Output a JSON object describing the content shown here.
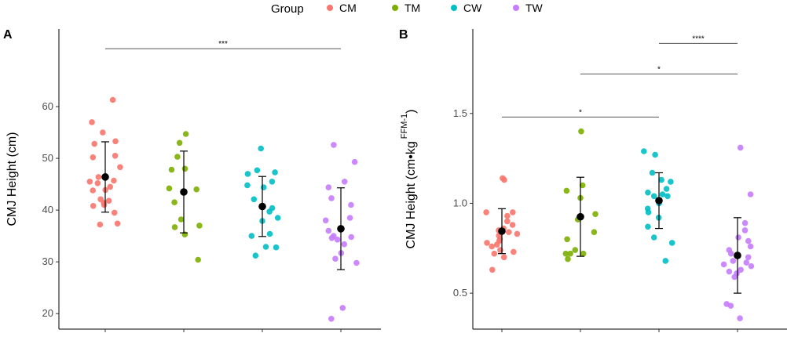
{
  "legend": {
    "title": "Group",
    "items": [
      {
        "label": "CM",
        "color": "#F8766D"
      },
      {
        "label": "TM",
        "color": "#7CAE00"
      },
      {
        "label": "CW",
        "color": "#00BFC4"
      },
      {
        "label": "TW",
        "color": "#C77CFF"
      }
    ]
  },
  "chart_data": [
    {
      "type": "scatter",
      "panel": "A",
      "ylabel": "CMJ Height (cm)",
      "ylim": [
        17,
        75
      ],
      "yticks": [
        20,
        30,
        40,
        50,
        60
      ],
      "groups": [
        "CM",
        "TM",
        "CW",
        "TW"
      ],
      "points": [
        [
          61.3,
          57.0,
          55.0,
          53.3,
          52.8,
          50.5,
          50.2,
          48.3,
          46.4,
          45.7,
          45.5,
          45.2,
          44.5,
          43.9,
          43.8,
          42.1,
          41.8,
          41.4,
          41.0,
          40.8,
          39.5,
          37.4,
          37.2
        ],
        [
          54.7,
          53.0,
          50.3,
          48.0,
          47.8,
          44.2,
          44.0,
          41.5,
          38.2,
          37.0,
          36.7,
          35.3,
          30.4
        ],
        [
          51.9,
          47.7,
          47.3,
          47.0,
          45.5,
          44.8,
          44.4,
          42.1,
          40.7,
          40.4,
          39.7,
          38.5,
          37.9,
          35.4,
          35.0,
          32.9,
          32.8,
          31.2
        ],
        [
          52.6,
          49.3,
          45.5,
          44.4,
          42.3,
          41.0,
          38.5,
          38.0,
          36.0,
          35.0,
          34.8,
          34.6,
          34.3,
          33.4,
          31.7,
          30.6,
          29.8,
          21.1,
          19.0
        ]
      ],
      "means": [
        46.4,
        43.5,
        40.7,
        36.4
      ],
      "sd": [
        6.8,
        7.9,
        5.8,
        7.9
      ],
      "significance": [
        {
          "from": "CM",
          "to": "TW",
          "label": "***",
          "y": 71.2
        }
      ]
    },
    {
      "type": "scatter",
      "panel": "B",
      "ylabel": "CMJ Height (cm•kg",
      "ylabel_sup": "FFM-1",
      "ylabel_close": ")",
      "ylim": [
        0.3,
        1.97
      ],
      "yticks": [
        0.5,
        1.0,
        1.5
      ],
      "groups": [
        "CM",
        "TM",
        "CW",
        "TW"
      ],
      "points": [
        [
          1.14,
          1.13,
          0.95,
          0.95,
          0.93,
          0.9,
          0.88,
          0.86,
          0.85,
          0.84,
          0.83,
          0.82,
          0.8,
          0.79,
          0.78,
          0.77,
          0.76,
          0.74,
          0.73,
          0.72,
          0.7,
          0.63
        ],
        [
          1.4,
          1.1,
          1.07,
          1.03,
          0.94,
          0.91,
          0.84,
          0.8,
          0.74,
          0.72,
          0.72,
          0.72,
          0.69
        ],
        [
          1.29,
          1.27,
          1.17,
          1.13,
          1.12,
          1.08,
          1.06,
          1.05,
          1.04,
          1.04,
          1.0,
          0.97,
          0.95,
          0.92,
          0.87,
          0.81,
          0.78,
          0.68
        ],
        [
          1.31,
          1.05,
          0.89,
          0.85,
          0.81,
          0.79,
          0.76,
          0.74,
          0.72,
          0.7,
          0.68,
          0.67,
          0.66,
          0.65,
          0.63,
          0.62,
          0.61,
          0.59,
          0.44,
          0.43,
          0.36
        ]
      ],
      "means": [
        0.845,
        0.925,
        1.015,
        0.71
      ],
      "sd": [
        0.125,
        0.22,
        0.155,
        0.21
      ],
      "significance": [
        {
          "from": "CM",
          "to": "CW",
          "label": "*",
          "y": 1.48
        },
        {
          "from": "TM",
          "to": "TW",
          "label": "*",
          "y": 1.72
        },
        {
          "from": "CW",
          "to": "TW",
          "label": "****",
          "y": 1.89
        }
      ]
    }
  ]
}
